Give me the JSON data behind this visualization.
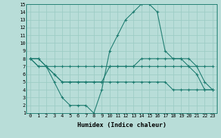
{
  "xlabel": "Humidex (Indice chaleur)",
  "ylabel": "",
  "x_hours": [
    0,
    1,
    2,
    3,
    4,
    5,
    6,
    7,
    8,
    9,
    10,
    11,
    12,
    13,
    14,
    15,
    16,
    17,
    18,
    19,
    20,
    21,
    22,
    23
  ],
  "line1": [
    8,
    8,
    7,
    5,
    3,
    2,
    2,
    2,
    1,
    4,
    9,
    11,
    13,
    14,
    15,
    15,
    14,
    9,
    8,
    8,
    7,
    6,
    4,
    4
  ],
  "line2": [
    8,
    8,
    7,
    7,
    7,
    7,
    7,
    7,
    7,
    7,
    7,
    7,
    7,
    7,
    7,
    7,
    7,
    7,
    7,
    7,
    7,
    7,
    7,
    7
  ],
  "line3": [
    8,
    7,
    7,
    6,
    5,
    5,
    5,
    5,
    5,
    5,
    7,
    7,
    7,
    7,
    8,
    8,
    8,
    8,
    8,
    8,
    8,
    7,
    5,
    4
  ],
  "line4": [
    8,
    7,
    7,
    6,
    5,
    5,
    5,
    5,
    5,
    5,
    5,
    5,
    5,
    5,
    5,
    5,
    5,
    5,
    4,
    4,
    4,
    4,
    4,
    4
  ],
  "color": "#1a7a6e",
  "bg_color": "#b8ddd8",
  "grid_color": "#9cccc4",
  "ylim_min": 1,
  "ylim_max": 15,
  "xlim_min": 0,
  "xlim_max": 23,
  "tick_fontsize": 5.2,
  "xlabel_fontsize": 6.5
}
